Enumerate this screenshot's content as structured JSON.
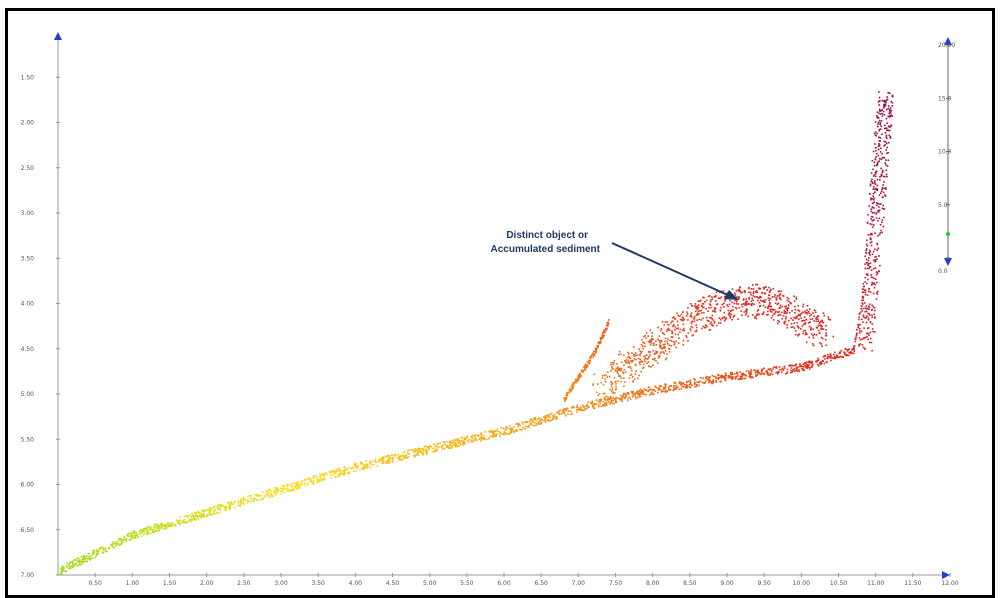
{
  "chart_data": {
    "type": "scatter",
    "title": "",
    "xlabel": "",
    "ylabel": "",
    "x_ticks": [
      "0.50",
      "1.00",
      "1.50",
      "2.00",
      "2.50",
      "3.00",
      "3.50",
      "4.00",
      "4.50",
      "5.00",
      "5.50",
      "6.00",
      "6.50",
      "7.00",
      "7.50",
      "8.00",
      "8.50",
      "9.00",
      "9.50",
      "10.00",
      "10.50",
      "11.00",
      "11.50",
      "12.00"
    ],
    "y_ticks": [
      "1.50",
      "2.00",
      "2.50",
      "3.00",
      "3.50",
      "4.00",
      "4.50",
      "5.00",
      "5.50",
      "6.00",
      "6.50",
      "7.00"
    ],
    "xlim": [
      0,
      12
    ],
    "ylim": [
      1.0,
      7.0
    ],
    "y_inverted": true,
    "colorbar": {
      "ticks": [
        "20.00",
        "15.0",
        "10.0",
        "5.0",
        "0.0"
      ],
      "range": [
        0,
        20
      ],
      "colors": [
        "#9b1545",
        "#e3251b",
        "#f39a12",
        "#f9dc19",
        "#9bdc12"
      ]
    },
    "point_color_map": "elevation: green (low) to yellow, orange, red, dark red (high)",
    "series": [
      {
        "role": "main trend",
        "x": [
          0.0,
          1.0,
          2.0,
          3.0,
          4.0,
          5.0,
          6.0,
          7.0,
          8.0,
          9.0,
          10.0,
          10.7,
          10.9,
          11.0,
          11.1,
          11.15
        ],
        "y": [
          6.95,
          6.55,
          6.3,
          6.05,
          5.8,
          5.6,
          5.4,
          5.15,
          4.95,
          4.8,
          4.7,
          4.5,
          3.5,
          2.5,
          1.8,
          1.7
        ]
      },
      {
        "role": "branch near 7.2",
        "x": [
          6.8,
          7.0,
          7.2,
          7.4
        ],
        "y": [
          5.05,
          4.8,
          4.55,
          4.2
        ]
      },
      {
        "role": "distinct object cluster",
        "x": [
          7.3,
          7.8,
          8.3,
          8.8,
          9.3,
          9.8,
          10.3
        ],
        "y": [
          4.95,
          4.6,
          4.3,
          4.05,
          3.95,
          4.05,
          4.35
        ]
      }
    ],
    "annotation": {
      "lines": [
        "Distinct object or",
        "Accumulated sediment"
      ]
    }
  }
}
